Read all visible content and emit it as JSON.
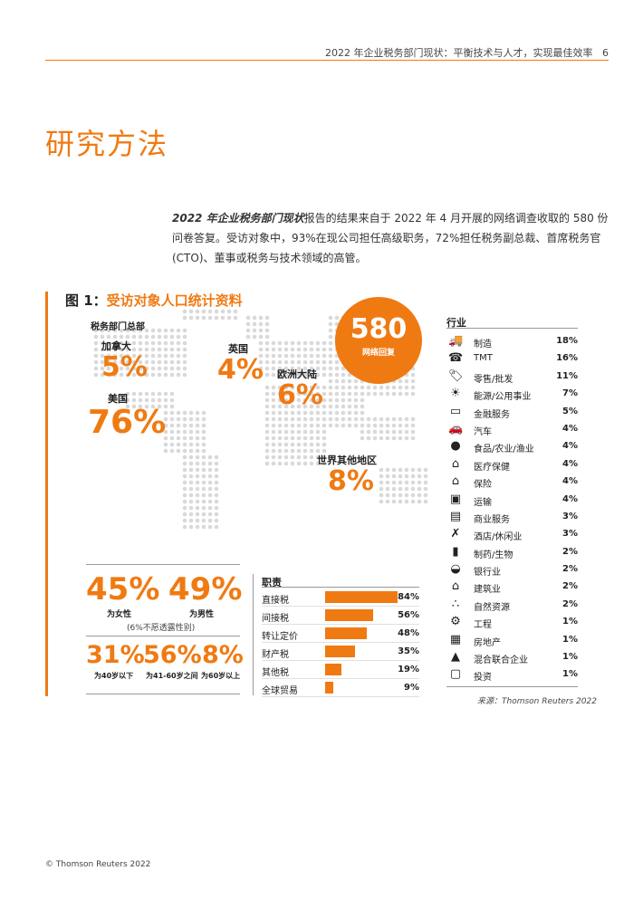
{
  "header": {
    "title": "2022 年企业税务部门现状：平衡技术与人才，实现最佳效率",
    "page_number": "6"
  },
  "page_title": "研究方法",
  "intro": {
    "emphasis": "2022 年企业税务部门现状",
    "text": "报告的结果来自于 2022 年 4 月开展的网络调查收取的 580 份问卷答复。受访对象中，93%在现公司担任高级职务，72%担任税务副总裁、首席税务官(CTO)、董事或税务与技术领域的高管。"
  },
  "figure": {
    "label": "图 1：",
    "title": "受访对象人口统计资料",
    "hq_label": "税务部门总部",
    "regions": [
      {
        "name": "加拿大",
        "value": "5%"
      },
      {
        "name": "英国",
        "value": "4%"
      },
      {
        "name": "美国",
        "value": "76%"
      },
      {
        "name": "欧洲大陆",
        "value": "6%"
      },
      {
        "name": "世界其他地区",
        "value": "8%"
      }
    ],
    "responses": {
      "number": "580",
      "label": "网络回复"
    },
    "industry": {
      "title": "行业",
      "items": [
        {
          "name": "制造",
          "pct": "18%",
          "icon": "truck-icon"
        },
        {
          "name": "TMT",
          "pct": "16%",
          "icon": "phone-icon"
        },
        {
          "name": "零售/批发",
          "pct": "11%",
          "icon": "tag-icon"
        },
        {
          "name": "能源/公用事业",
          "pct": "7%",
          "icon": "bulb-icon"
        },
        {
          "name": "金融服务",
          "pct": "5%",
          "icon": "card-icon"
        },
        {
          "name": "汽车",
          "pct": "4%",
          "icon": "car-icon"
        },
        {
          "name": "食品/农业/渔业",
          "pct": "4%",
          "icon": "apple-icon"
        },
        {
          "name": "医疗保健",
          "pct": "4%",
          "icon": "bed-icon"
        },
        {
          "name": "保险",
          "pct": "4%",
          "icon": "house-shield-icon"
        },
        {
          "name": "运输",
          "pct": "4%",
          "icon": "train-icon"
        },
        {
          "name": "商业服务",
          "pct": "3%",
          "icon": "briefcase-icon"
        },
        {
          "name": "酒店/休闲业",
          "pct": "3%",
          "icon": "cutlery-icon"
        },
        {
          "name": "制药/生物",
          "pct": "2%",
          "icon": "pill-bottle-icon"
        },
        {
          "name": "银行业",
          "pct": "2%",
          "icon": "piggy-bank-icon"
        },
        {
          "name": "建筑业",
          "pct": "2%",
          "icon": "building-icon"
        },
        {
          "name": "自然资源",
          "pct": "2%",
          "icon": "logs-icon"
        },
        {
          "name": "工程",
          "pct": "1%",
          "icon": "gear-icon"
        },
        {
          "name": "房地产",
          "pct": "1%",
          "icon": "apartment-icon"
        },
        {
          "name": "混合联合企业",
          "pct": "1%",
          "icon": "factory-icon"
        },
        {
          "name": "投资",
          "pct": "1%",
          "icon": "cash-icon"
        }
      ]
    },
    "source": "来源：Thomson Reuters 2022",
    "gender": {
      "female": {
        "value": "45%",
        "label": "为女性"
      },
      "male": {
        "value": "49%",
        "label": "为男性"
      },
      "note": "(6%不愿透露性别)"
    },
    "age": [
      {
        "value": "31%",
        "label": "为40岁以下"
      },
      {
        "value": "56%",
        "label": "为41-60岁之间"
      },
      {
        "value": "8%",
        "label": "为60岁以上"
      }
    ],
    "roles": {
      "title": "职责",
      "items": [
        {
          "name": "直接税",
          "value": 84,
          "pct": "84%"
        },
        {
          "name": "间接税",
          "value": 56,
          "pct": "56%"
        },
        {
          "name": "转让定价",
          "value": 48,
          "pct": "48%"
        },
        {
          "name": "财产税",
          "value": 35,
          "pct": "35%"
        },
        {
          "name": "其他税",
          "value": 19,
          "pct": "19%"
        },
        {
          "name": "全球贸易",
          "value": 9,
          "pct": "9%"
        }
      ]
    }
  },
  "footer": "© Thomson Reuters 2022",
  "colors": {
    "accent": "#f07a12",
    "map_dots": "#d9d9d9"
  }
}
